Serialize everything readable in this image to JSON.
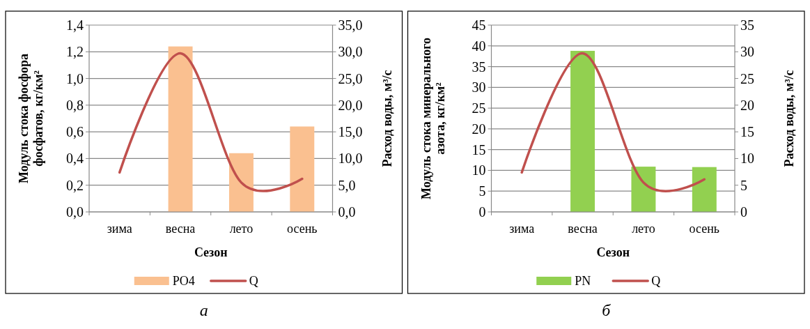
{
  "chart_data": [
    {
      "type": "bar",
      "categories": [
        "зима",
        "весна",
        "лето",
        "осень"
      ],
      "xlabel": "Сезон",
      "ylabel": "Модуль стока фосфора фосфатов, кг/км²",
      "y2label": "Расход воды, м³/с",
      "series": [
        {
          "name": "PO4",
          "color": "#fac090",
          "values": [
            0,
            1.24,
            0.44,
            0.64
          ]
        },
        {
          "name": "Q",
          "type": "line",
          "axis": "y2",
          "color": "#c0504d",
          "values": [
            7.4,
            29.7,
            5.5,
            6.2
          ]
        }
      ],
      "ylim": [
        0,
        1.4
      ],
      "yticks": [
        {
          "value": 0,
          "label": "0,0"
        },
        {
          "value": 0.2,
          "label": "0,2"
        },
        {
          "value": 0.4,
          "label": "0,4"
        },
        {
          "value": 0.6,
          "label": "0,6"
        },
        {
          "value": 0.8,
          "label": "0,8"
        },
        {
          "value": 1.0,
          "label": "1,0"
        },
        {
          "value": 1.2,
          "label": "1,2"
        },
        {
          "value": 1.4,
          "label": "1,4"
        }
      ],
      "y2lim": [
        0,
        35
      ],
      "y2ticks": [
        {
          "value": 0,
          "label": "0,0"
        },
        {
          "value": 5,
          "label": "5,0"
        },
        {
          "value": 10,
          "label": "10,0"
        },
        {
          "value": 15,
          "label": "15,0"
        },
        {
          "value": 20,
          "label": "20,0"
        },
        {
          "value": 25,
          "label": "25,0"
        },
        {
          "value": 30,
          "label": "30,0"
        },
        {
          "value": 35,
          "label": "35,0"
        }
      ],
      "grid": "y",
      "legend": "bottom",
      "annotations": [
        "а"
      ]
    },
    {
      "type": "bar",
      "categories": [
        "зима",
        "весна",
        "лето",
        "осень"
      ],
      "xlabel": "Сезон",
      "ylabel": "Модуль стока минерального азота, кг/км²",
      "y2label": "Расход воды, м³/с",
      "series": [
        {
          "name": "PN",
          "color": "#92d050",
          "values": [
            0,
            38.8,
            10.9,
            10.8
          ]
        },
        {
          "name": "Q",
          "type": "line",
          "axis": "y2",
          "color": "#c0504d",
          "values": [
            7.4,
            29.7,
            5.5,
            6.1
          ]
        }
      ],
      "ylim": [
        0,
        45
      ],
      "yticks": [
        0,
        5,
        10,
        15,
        20,
        25,
        30,
        35,
        40,
        45
      ],
      "y2lim": [
        0,
        35
      ],
      "y2ticks": [
        0,
        5,
        10,
        15,
        20,
        25,
        30,
        35
      ],
      "grid": "y",
      "legend": "bottom",
      "annotations": [
        "б"
      ]
    }
  ]
}
